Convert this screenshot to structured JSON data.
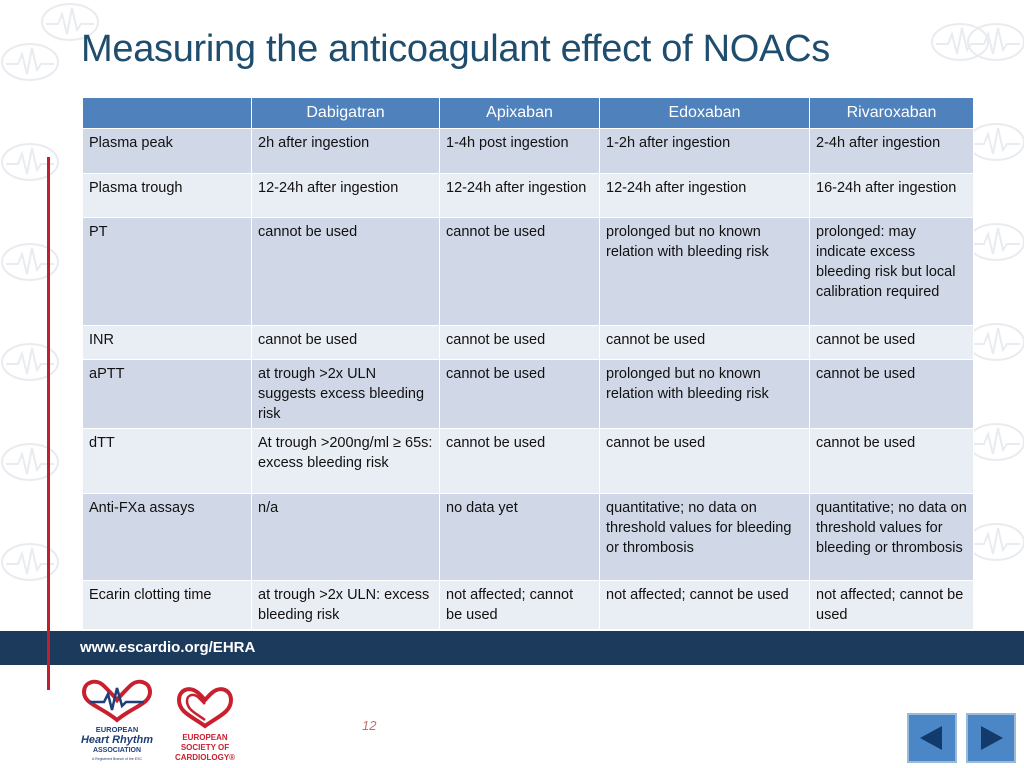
{
  "slide": {
    "title": "Measuring the anticoagulant effect of NOACs",
    "page_number": "12",
    "footer_url": "www.escardio.org/EHRA"
  },
  "table": {
    "headers": [
      "",
      "Dabigatran",
      "Apixaban",
      "Edoxaban",
      "Rivaroxaban"
    ],
    "rows": [
      [
        "Plasma peak",
        "2h after ingestion",
        "1-4h post ingestion",
        "1-2h after ingestion",
        "2-4h after ingestion"
      ],
      [
        "Plasma trough",
        "12-24h after ingestion",
        "12-24h after ingestion",
        "12-24h after ingestion",
        "16-24h after ingestion"
      ],
      [
        "PT",
        "cannot be used",
        "cannot be used",
        "prolonged but no known relation with bleeding risk",
        "prolonged: may indicate excess bleeding risk but local calibration required"
      ],
      [
        "INR",
        "cannot be used",
        "cannot be used",
        "cannot be used",
        "cannot be used"
      ],
      [
        "aPTT",
        "at trough >2x ULN suggests excess bleeding risk",
        "cannot be used",
        "prolonged but no known relation with bleeding risk",
        "cannot be used"
      ],
      [
        "dTT",
        "At trough >200ng/ml ≥ 65s: excess bleeding risk",
        "cannot be used",
        "cannot be used",
        "cannot be used"
      ],
      [
        "Anti-FXa assays",
        "n/a",
        "no data yet",
        "quantitative; no data on threshold values for bleeding or thrombosis",
        "quantitative; no data on threshold values for bleeding or thrombosis"
      ],
      [
        "Ecarin clotting time",
        "at trough >2x ULN: excess bleeding risk",
        "not affected; cannot be used",
        "not affected; cannot be used",
        "not affected; cannot be used"
      ]
    ]
  },
  "logos": {
    "ehra": {
      "line1": "EUROPEAN",
      "line2": "Heart Rhythm",
      "line3": "ASSOCIATION",
      "line4": "A Registered Branch of the ESC"
    },
    "esc": {
      "line1": "EUROPEAN",
      "line2": "SOCIETY OF",
      "line3": "CARDIOLOGY®"
    }
  },
  "nav": {
    "prev_icon": "triangle-left-icon",
    "next_icon": "triangle-right-icon"
  },
  "colors": {
    "title": "#1f4d6e",
    "header_bg": "#4f81bd",
    "row_odd": "#d0d8e8",
    "row_even": "#e9edf4",
    "footer_bar": "#1c3a5c",
    "accent_red": "#c0202e",
    "nav_button": "#4b87c6"
  }
}
